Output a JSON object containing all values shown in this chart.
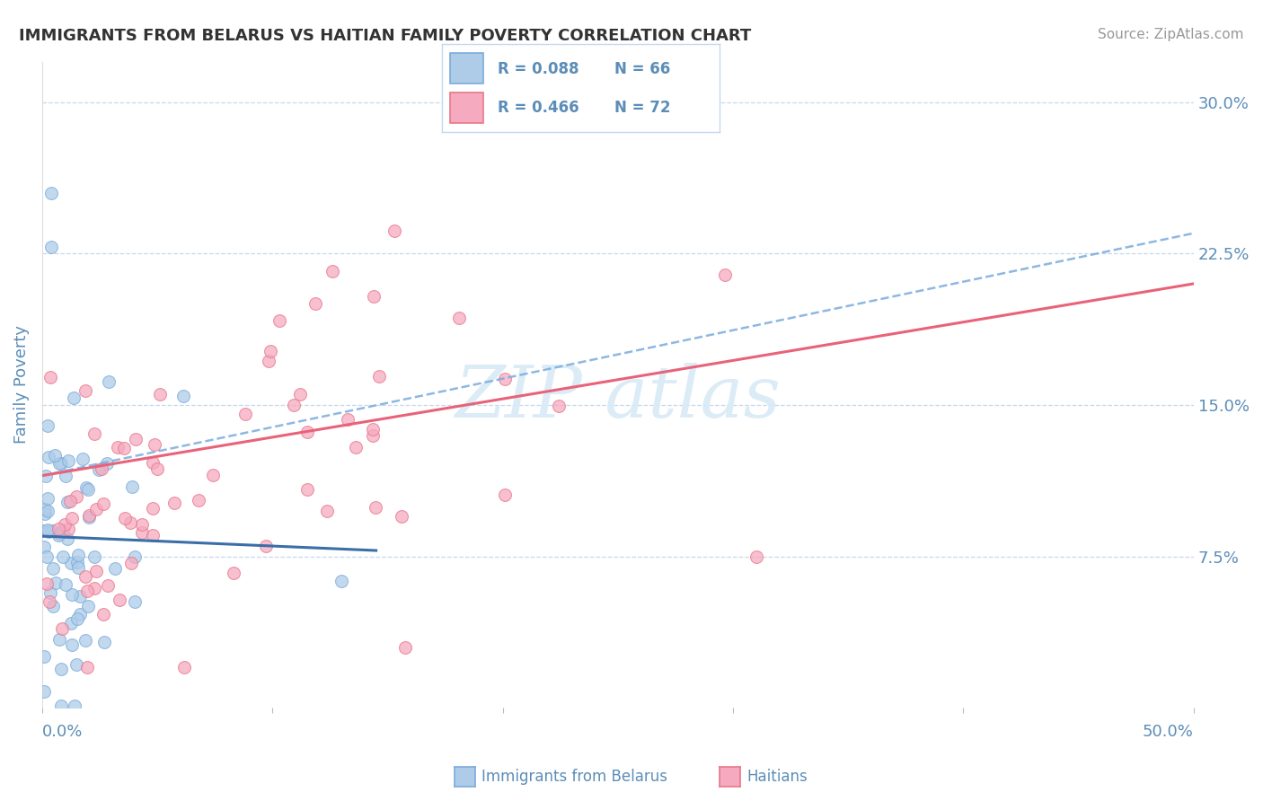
{
  "title": "IMMIGRANTS FROM BELARUS VS HAITIAN FAMILY POVERTY CORRELATION CHART",
  "source": "Source: ZipAtlas.com",
  "xlabel_belarus": "Immigrants from Belarus",
  "xlabel_haitians": "Haitians",
  "ylabel": "Family Poverty",
  "xlim": [
    0.0,
    0.5
  ],
  "ylim": [
    0.0,
    0.32
  ],
  "yticks": [
    0.075,
    0.15,
    0.225,
    0.3
  ],
  "ytick_labels": [
    "7.5%",
    "15.0%",
    "22.5%",
    "30.0%"
  ],
  "xtick_edge_left": "0.0%",
  "xtick_edge_right": "50.0%",
  "legend_r_belarus": "R = 0.088",
  "legend_n_belarus": "N = 66",
  "legend_r_haitians": "R = 0.466",
  "legend_n_haitians": "N = 72",
  "color_belarus": "#AECCE8",
  "color_haitians": "#F5AABF",
  "color_trendline_belarus": "#7AACDC",
  "color_trendline_haitians": "#E8637A",
  "color_axis_labels": "#5B8DB8",
  "color_title": "#333333",
  "color_grid": "#C5D8EC",
  "color_source": "#999999",
  "background_color": "#FFFFFF",
  "watermark_color": "#D8EAF7",
  "trendline_belarus_x0": 0.0,
  "trendline_belarus_y0": 0.115,
  "trendline_belarus_x1": 0.5,
  "trendline_belarus_y1": 0.235,
  "trendline_haitians_x0": 0.0,
  "trendline_haitians_y0": 0.115,
  "trendline_haitians_x1": 0.5,
  "trendline_haitians_y1": 0.21
}
